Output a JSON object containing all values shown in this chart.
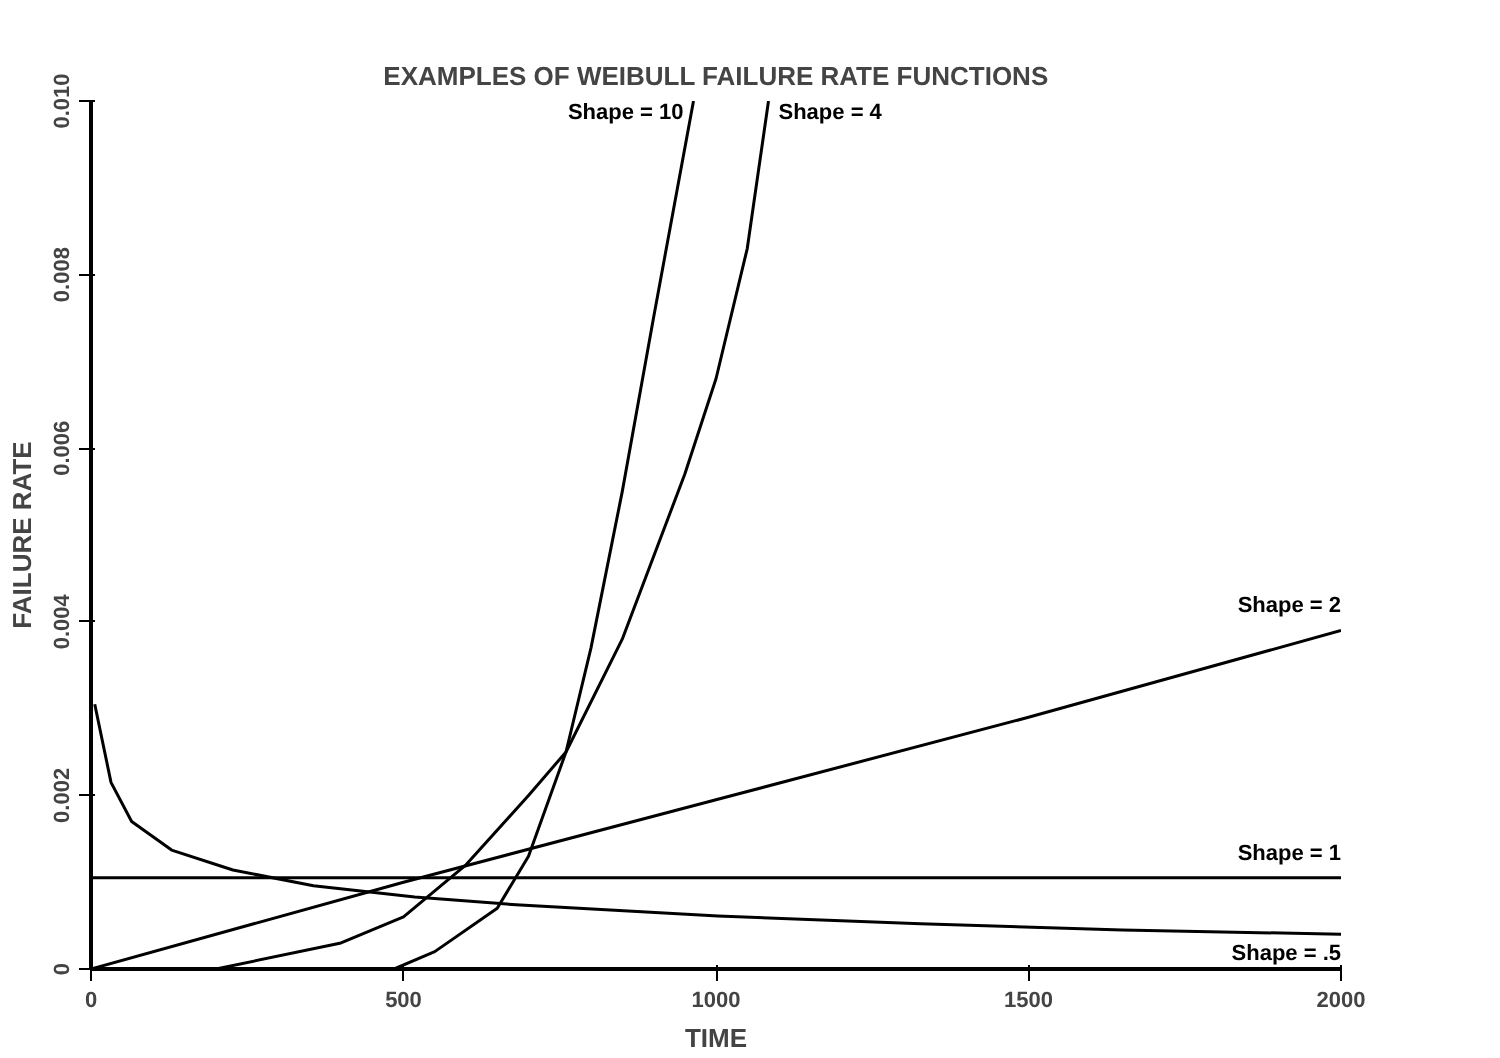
{
  "chart_data": {
    "type": "line",
    "title": "EXAMPLES OF WEIBULL FAILURE RATE FUNCTIONS",
    "xlabel": "TIME",
    "ylabel": "FAILURE RATE",
    "xlim": [
      0,
      2000
    ],
    "ylim": [
      0,
      0.01
    ],
    "xticks": [
      0,
      500,
      1000,
      1500,
      2000
    ],
    "yticks": [
      0,
      0.002,
      0.004,
      0.006,
      0.008,
      {
        "value": 0.01,
        "label": "0.010"
      }
    ],
    "grid": false,
    "marker": "none",
    "line_style": "solid",
    "series": [
      {
        "name": "Shape = 10",
        "color": "#000000",
        "x": [
          0,
          485,
          550,
          650,
          700,
          760,
          800,
          850,
          900,
          964
        ],
        "values": [
          0,
          0,
          0.0002,
          0.0007,
          0.0013,
          0.0025,
          0.0037,
          0.0055,
          0.0075,
          0.01
        ]
      },
      {
        "name": "Shape = 4",
        "color": "#000000",
        "x": [
          0,
          200,
          400,
          500,
          600,
          700,
          760,
          850,
          950,
          1000,
          1050,
          1084
        ],
        "values": [
          0,
          0,
          0.0003,
          0.0006,
          0.0012,
          0.002,
          0.0025,
          0.0038,
          0.0057,
          0.0068,
          0.0083,
          0.01
        ]
      },
      {
        "name": "Shape = 2",
        "color": "#000000",
        "x": [
          0,
          500,
          1000,
          1500,
          2000
        ],
        "values": [
          0,
          0.001,
          0.00195,
          0.0029,
          0.0039
        ]
      },
      {
        "name": "Shape = 1",
        "color": "#000000",
        "x": [
          0,
          2000
        ],
        "values": [
          0.00105,
          0.00105
        ]
      },
      {
        "name": "Shape = .5",
        "color": "#000000",
        "x": [
          6,
          32,
          65,
          129,
          227,
          356,
          518,
          680,
          1003,
          1327,
          1650,
          2000
        ],
        "values": [
          0.00305,
          0.00215,
          0.0017,
          0.00137,
          0.00114,
          0.00096,
          0.00083,
          0.00074,
          0.00061,
          0.00052,
          0.00045,
          0.0004
        ]
      }
    ]
  }
}
